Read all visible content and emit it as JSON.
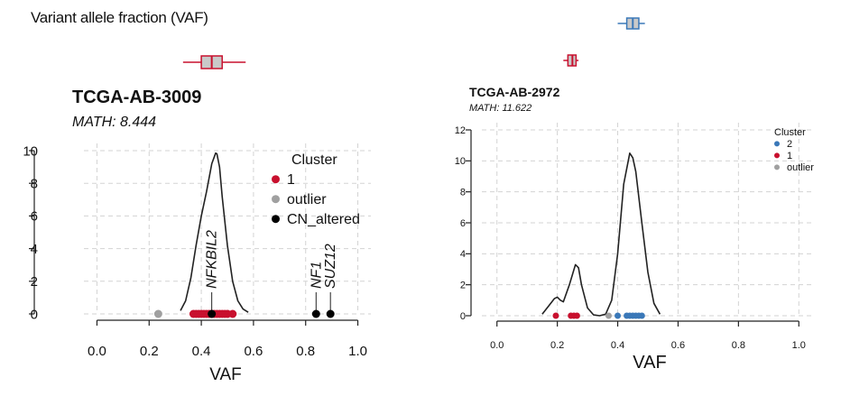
{
  "header": "Variant allele fraction (VAF)",
  "chart_data": [
    {
      "type": "scatter",
      "panel": "left",
      "title": "TCGA-AB-3009",
      "subtitle": "MATH: 8.444",
      "xlabel": "VAF",
      "ylabel": "",
      "xlim": [
        -0.05,
        1.05
      ],
      "ylim": [
        0,
        10
      ],
      "xticks": [
        "0.0",
        "0.2",
        "0.4",
        "0.6",
        "0.8",
        "1.0"
      ],
      "yticks": [
        "0",
        "2",
        "4",
        "6",
        "8",
        "10"
      ],
      "grid": true,
      "legend": {
        "title": "Cluster",
        "position": "top-right",
        "entries": [
          {
            "label": "1",
            "color": "#c8102e"
          },
          {
            "label": "outlier",
            "color": "#a0a0a0"
          },
          {
            "label": "CN_altered",
            "color": "#000000"
          }
        ]
      },
      "series": [
        {
          "name": "1",
          "color": "#c8102e",
          "x": [
            0.37,
            0.38,
            0.39,
            0.4,
            0.41,
            0.42,
            0.43,
            0.44,
            0.45,
            0.46,
            0.47,
            0.48,
            0.49,
            0.5,
            0.52
          ],
          "y": 0
        },
        {
          "name": "outlier",
          "color": "#a0a0a0",
          "x": [
            0.235
          ],
          "y": 0
        },
        {
          "name": "CN_altered",
          "color": "#000000",
          "x": [
            0.44,
            0.84,
            0.895
          ],
          "y": 0
        }
      ],
      "density": {
        "x": [
          0.32,
          0.34,
          0.36,
          0.38,
          0.4,
          0.42,
          0.44,
          0.455,
          0.46,
          0.47,
          0.48,
          0.5,
          0.52,
          0.54,
          0.56,
          0.58
        ],
        "y": [
          0.2,
          0.8,
          2.2,
          4.2,
          6.0,
          7.5,
          9.2,
          9.85,
          9.8,
          9.0,
          7.2,
          4.2,
          2.0,
          0.8,
          0.3,
          0.1
        ]
      },
      "annotations": [
        {
          "label": "NFKBIL2",
          "x": 0.44
        },
        {
          "label": "NF1",
          "x": 0.84
        },
        {
          "label": "SUZ12",
          "x": 0.895
        }
      ],
      "boxplot": {
        "color": "#c8102e",
        "min": 0.33,
        "q1": 0.4,
        "median": 0.44,
        "q3": 0.48,
        "max": 0.57
      }
    },
    {
      "type": "scatter",
      "panel": "right",
      "title": "TCGA-AB-2972",
      "subtitle": "MATH: 11.622",
      "xlabel": "VAF",
      "ylabel": "",
      "xlim": [
        -0.05,
        1.05
      ],
      "ylim": [
        0,
        12
      ],
      "xticks": [
        "0.0",
        "0.2",
        "0.4",
        "0.6",
        "0.8",
        "1.0"
      ],
      "yticks": [
        "0",
        "2",
        "4",
        "6",
        "8",
        "10",
        "12"
      ],
      "grid": true,
      "legend": {
        "title": "Cluster",
        "position": "top-right",
        "entries": [
          {
            "label": "2",
            "color": "#3a78b8"
          },
          {
            "label": "1",
            "color": "#c8102e"
          },
          {
            "label": "outlier",
            "color": "#a0a0a0"
          }
        ]
      },
      "series": [
        {
          "name": "1",
          "color": "#c8102e",
          "x": [
            0.195,
            0.245,
            0.255,
            0.265
          ],
          "y": 0
        },
        {
          "name": "outlier",
          "color": "#a0a0a0",
          "x": [
            0.37
          ],
          "y": 0
        },
        {
          "name": "2",
          "color": "#3a78b8",
          "x": [
            0.4,
            0.43,
            0.44,
            0.45,
            0.46,
            0.47,
            0.48
          ],
          "y": 0
        }
      ],
      "density": {
        "x": [
          0.15,
          0.17,
          0.19,
          0.2,
          0.21,
          0.22,
          0.24,
          0.26,
          0.27,
          0.28,
          0.3,
          0.32,
          0.34,
          0.36,
          0.38,
          0.4,
          0.42,
          0.44,
          0.45,
          0.46,
          0.48,
          0.5,
          0.52,
          0.54
        ],
        "y": [
          0.1,
          0.6,
          1.1,
          1.2,
          1.0,
          0.9,
          2.0,
          3.3,
          3.1,
          2.0,
          0.5,
          0.05,
          0.0,
          0.1,
          1.0,
          4.0,
          8.5,
          10.5,
          10.2,
          9.3,
          6.0,
          2.8,
          0.8,
          0.1
        ]
      },
      "annotations": [],
      "boxplots": [
        {
          "color": "#3a78b8",
          "min": 0.4,
          "q1": 0.43,
          "median": 0.45,
          "q3": 0.47,
          "max": 0.49,
          "row": "top"
        },
        {
          "color": "#c8102e",
          "min": 0.22,
          "q1": 0.235,
          "median": 0.25,
          "q3": 0.262,
          "max": 0.27,
          "row": "bottom"
        }
      ]
    }
  ]
}
